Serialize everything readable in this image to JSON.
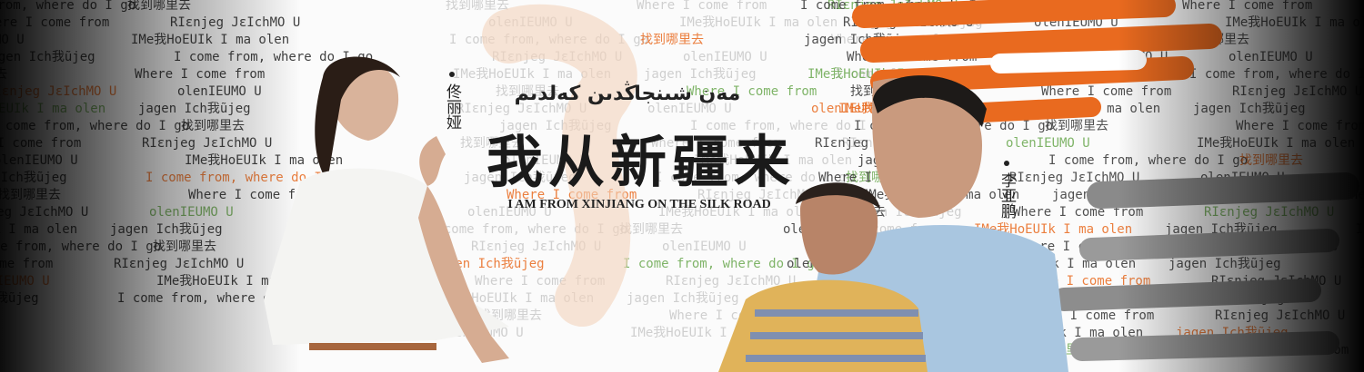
{
  "banner": {
    "title": "我从新疆来",
    "uyghur_title": "مەن شىنجاڭدىن كەلدىم",
    "subtitle": "I AM FROM XINJIANG  ON THE SILK ROAD",
    "cast": [
      "佟丽娅",
      "李亚鹏"
    ],
    "background_phrases": [
      "I come from, where do I go",
      "找到哪里去",
      "Where I come from",
      "RIεnjeg JεIchMO U",
      "olenIEUMO U",
      "IMe我HoEUIk I ma olen",
      "jagen Ich我ũjeg"
    ]
  }
}
